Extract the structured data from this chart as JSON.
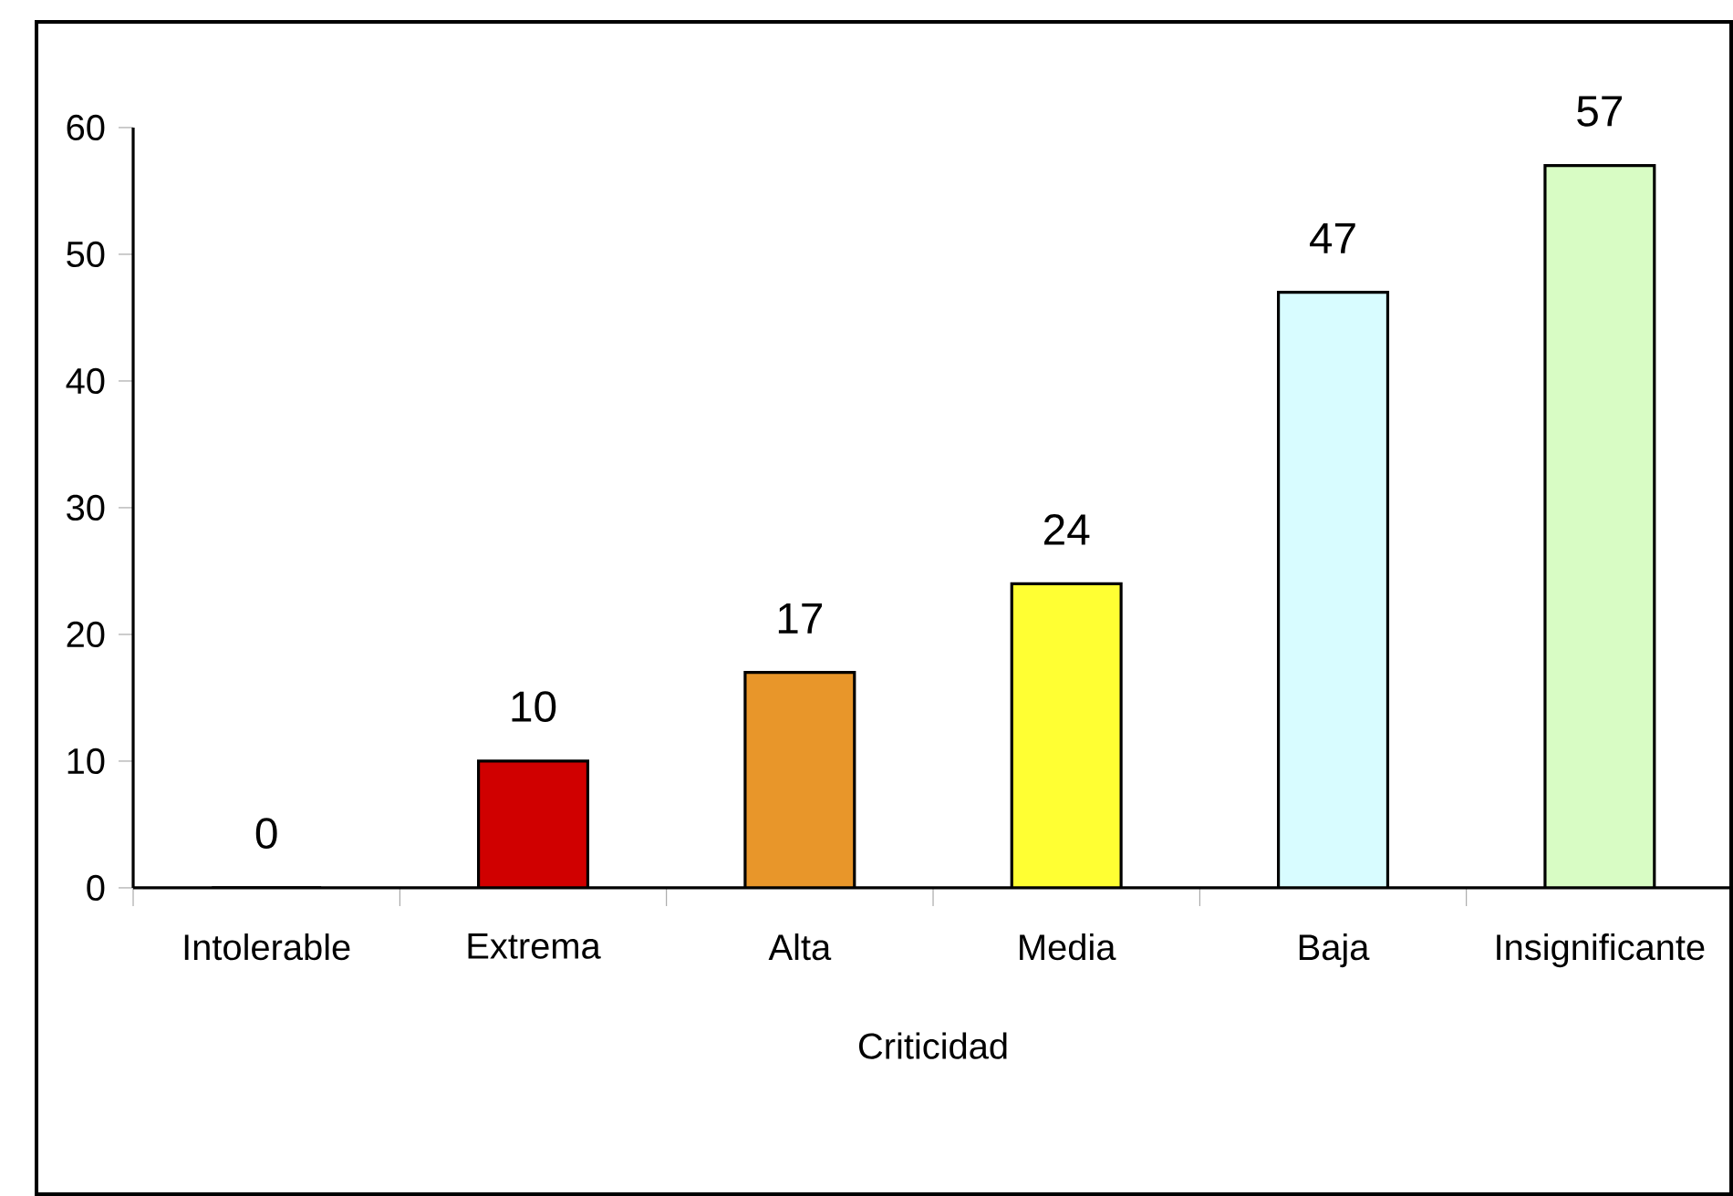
{
  "chart_data": {
    "type": "bar",
    "xlabel": "Criticidad",
    "categories": [
      "Intolerable",
      "Extrema",
      "Alta",
      "Media",
      "Baja",
      "Insignificante"
    ],
    "values": [
      0,
      10,
      17,
      24,
      47,
      57
    ],
    "colors": [
      "#d00000",
      "#d00000",
      "#e8962a",
      "#ffff33",
      "#d8fcff",
      "#d8fcc4"
    ],
    "ylim": [
      0,
      60
    ],
    "yticks": [
      0,
      10,
      20,
      30,
      40,
      50,
      60
    ],
    "data_labels": true
  }
}
